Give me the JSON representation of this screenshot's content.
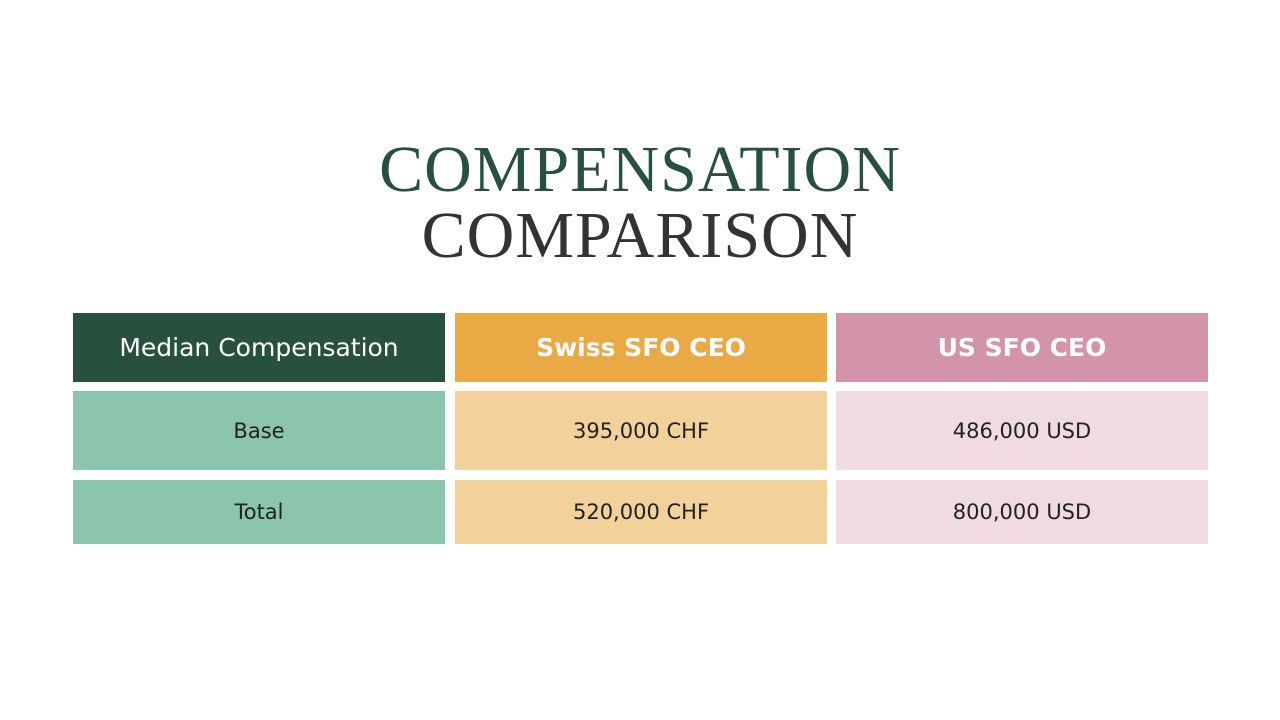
{
  "title": {
    "line1": "COMPENSATION",
    "line2": "COMPARISON"
  },
  "table": {
    "header": [
      "Median Compensation",
      "Swiss SFO CEO",
      "US SFO CEO"
    ],
    "rows": [
      [
        "Base",
        "395,000 CHF",
        "486,000 USD"
      ],
      [
        "Total",
        "520,000 CHF",
        "800,000 USD"
      ]
    ]
  }
}
